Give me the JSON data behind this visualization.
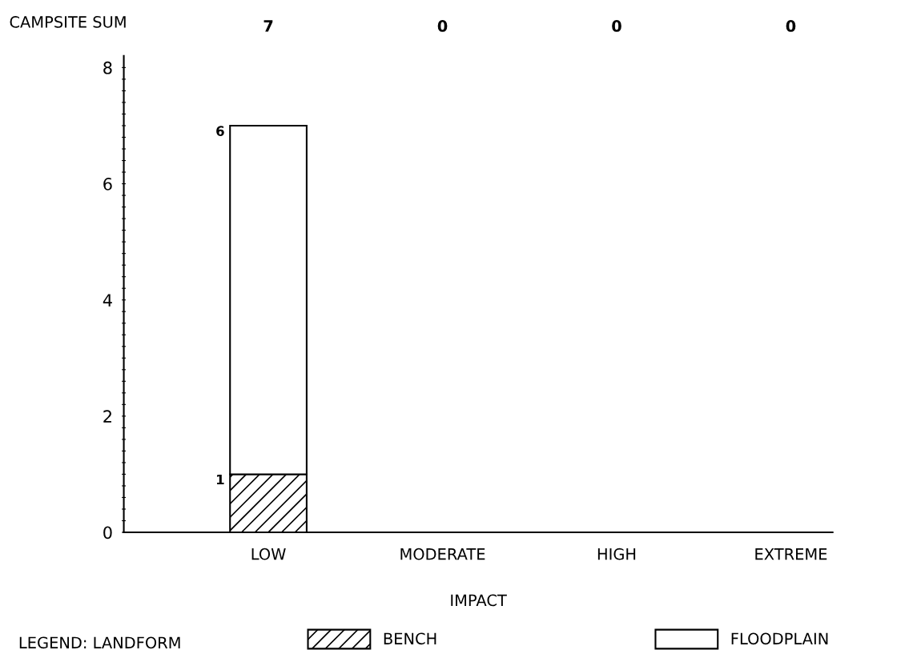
{
  "chart_data": {
    "type": "bar",
    "stacked": true,
    "xlabel": "IMPACT",
    "legend_title": "LEGEND: LANDFORM",
    "legend": "bottom",
    "grid": false,
    "categories": [
      "LOW",
      "MODERATE",
      "HIGH",
      "EXTREME"
    ],
    "series": [
      {
        "name": "BENCH",
        "color": "#000000",
        "values": [
          1,
          0,
          0,
          0
        ],
        "value_labels": [
          "1",
          null,
          null,
          null
        ]
      },
      {
        "name": "FLOODPLAIN",
        "color": "#ffffff",
        "values": [
          6,
          0,
          0,
          0
        ],
        "value_labels": [
          "6",
          null,
          null,
          null
        ]
      }
    ],
    "annotations": [
      "CAMPSITE SUM",
      "7",
      "0",
      "0",
      "0"
    ],
    "ylim": [
      0,
      8.2
    ],
    "yticks": [
      0,
      {
        "value": 0.2,
        "label": null
      },
      {
        "value": 0.4,
        "label": null
      },
      {
        "value": 0.6,
        "label": null
      },
      {
        "value": 0.8,
        "label": null
      },
      {
        "value": 1,
        "label": null
      },
      {
        "value": 1.2,
        "label": null
      },
      {
        "value": 1.4,
        "label": null
      },
      {
        "value": 1.6,
        "label": null
      },
      {
        "value": 1.8,
        "label": null
      },
      2,
      {
        "value": 2.2,
        "label": null
      },
      {
        "value": 2.4,
        "label": null
      },
      {
        "value": 2.6,
        "label": null
      },
      {
        "value": 2.8,
        "label": null
      },
      {
        "value": 3,
        "label": null
      },
      {
        "value": 3.2,
        "label": null
      },
      {
        "value": 3.4,
        "label": null
      },
      {
        "value": 3.6,
        "label": null
      },
      {
        "value": 3.8,
        "label": null
      },
      4,
      {
        "value": 4.2,
        "label": null
      },
      {
        "value": 4.4,
        "label": null
      },
      {
        "value": 4.6,
        "label": null
      },
      {
        "value": 4.8,
        "label": null
      },
      {
        "value": 5,
        "label": null
      },
      {
        "value": 5.2,
        "label": null
      },
      {
        "value": 5.4,
        "label": null
      },
      {
        "value": 5.6,
        "label": null
      },
      {
        "value": 5.8,
        "label": null
      },
      6,
      {
        "value": 6.2,
        "label": null
      },
      {
        "value": 6.4,
        "label": null
      },
      {
        "value": 6.6,
        "label": null
      },
      {
        "value": 6.8,
        "label": null
      },
      {
        "value": 7,
        "label": null
      },
      {
        "value": 7.2,
        "label": null
      },
      {
        "value": 7.4,
        "label": null
      },
      {
        "value": 7.6,
        "label": null
      },
      {
        "value": 7.8,
        "label": null
      },
      8
    ]
  }
}
